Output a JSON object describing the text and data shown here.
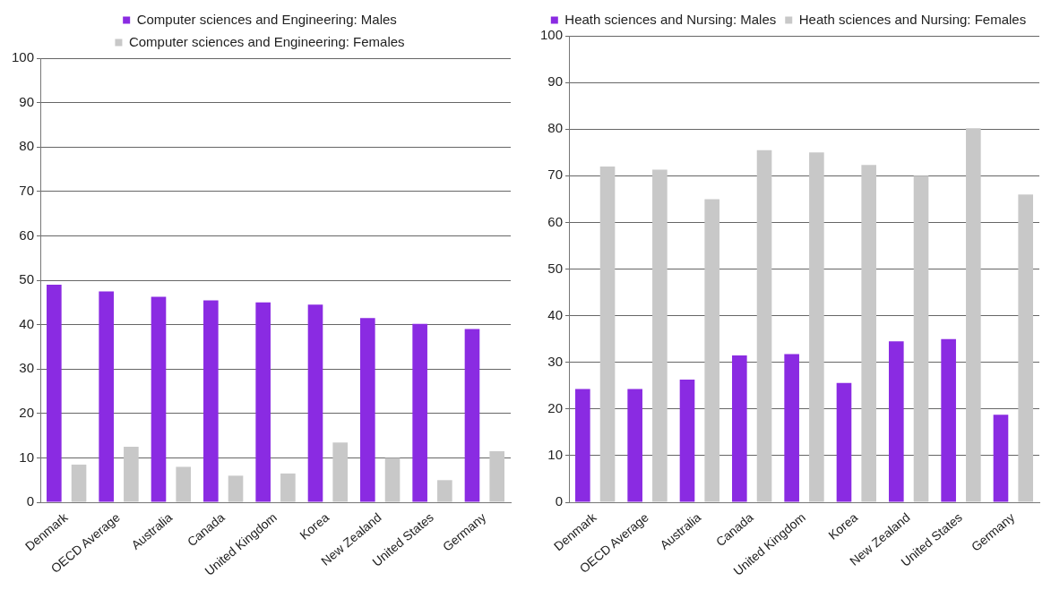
{
  "chart_data": [
    {
      "type": "bar",
      "categories": [
        "Denmark",
        "OECD Average",
        "Australia",
        "Canada",
        "United Kingdom",
        "Korea",
        "New Zealand",
        "United States",
        "Germany"
      ],
      "series": [
        {
          "name": "Computer sciences and Engineering: Males",
          "color": "#8a2be2",
          "values": [
            49,
            47.5,
            46.3,
            45.5,
            45,
            44.5,
            41.5,
            40.2,
            39
          ]
        },
        {
          "name": "Computer sciences and Engineering: Females",
          "color": "#c8c8c8",
          "values": [
            8.5,
            12.5,
            8,
            6,
            6.5,
            13.5,
            10,
            5,
            11.5
          ]
        }
      ],
      "ylim": [
        0,
        100
      ],
      "yticks": [
        0,
        10,
        20,
        30,
        40,
        50,
        60,
        70,
        80,
        90,
        100
      ],
      "grid": "y",
      "legend": "top"
    },
    {
      "type": "bar",
      "categories": [
        "Denmark",
        "OECD Average",
        "Australia",
        "Canada",
        "United Kingdom",
        "Korea",
        "New Zealand",
        "United States",
        "Germany"
      ],
      "series": [
        {
          "name": "Heath sciences and Nursing: Males",
          "color": "#8a2be2",
          "values": [
            24.3,
            24.3,
            26.3,
            31.5,
            31.8,
            25.6,
            34.5,
            35,
            18.8
          ]
        },
        {
          "name": "Heath sciences and Nursing: Females",
          "color": "#c8c8c8",
          "values": [
            72,
            71.3,
            65,
            75.5,
            75,
            72.3,
            70,
            80.2,
            66
          ]
        }
      ],
      "ylim": [
        0,
        100
      ],
      "yticks": [
        0,
        10,
        20,
        30,
        40,
        50,
        60,
        70,
        80,
        90,
        100
      ],
      "grid": "y",
      "legend": "top"
    }
  ]
}
